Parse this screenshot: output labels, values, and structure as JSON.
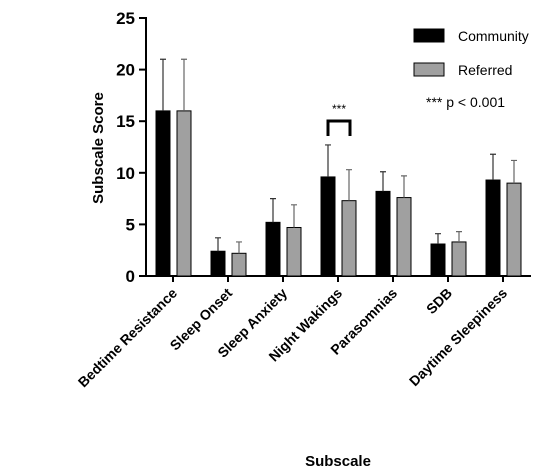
{
  "chart_data": {
    "type": "bar",
    "x_label": "Subscale",
    "y_label": "Subscale Score",
    "categories": [
      "Bedtime Resistance",
      "Sleep Onset",
      "Sleep Anxiety",
      "Night Wakings",
      "Parasomnias",
      "SDB",
      "Daytime Sleepiness"
    ],
    "series": [
      {
        "name": "Community",
        "color": "#000000",
        "values": [
          16,
          2.4,
          5.2,
          9.6,
          8.2,
          3.1,
          9.3
        ],
        "errors": [
          5,
          1.3,
          2.3,
          3.1,
          1.9,
          1.0,
          2.5
        ]
      },
      {
        "name": "Referred",
        "color": "#a0a0a0",
        "values": [
          16,
          2.2,
          4.7,
          7.3,
          7.6,
          3.3,
          9.0
        ],
        "errors": [
          5,
          1.1,
          2.2,
          3.0,
          2.1,
          1.0,
          2.2
        ]
      }
    ],
    "ylim": [
      0,
      25
    ],
    "yticks": [
      0,
      5,
      10,
      15,
      20,
      25
    ],
    "annotations": {
      "significance": "***",
      "note": "*** p < 0.001"
    },
    "legend": "top-right"
  }
}
